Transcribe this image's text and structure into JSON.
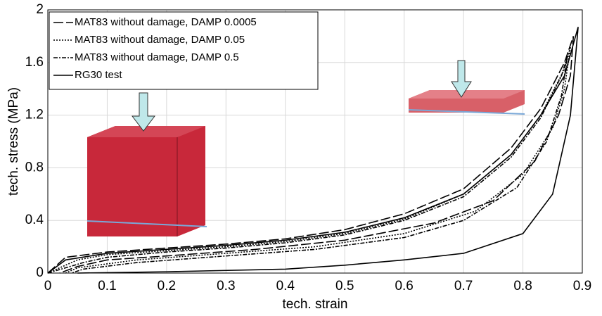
{
  "chart_data": {
    "type": "line",
    "xlabel": "tech. strain",
    "ylabel": "tech. stress (MPa)",
    "xlim": [
      0,
      0.9
    ],
    "ylim": [
      0,
      2
    ],
    "xticks": [
      0,
      0.1,
      0.2,
      0.3,
      0.4,
      0.5,
      0.6,
      0.7,
      0.8,
      0.9
    ],
    "yticks": [
      0,
      0.4,
      0.8,
      1.2,
      1.6,
      2
    ],
    "grid": true,
    "legend": "upper left",
    "series": [
      {
        "name": "MAT83 without damage, DAMP 0.0005",
        "color": "#000000",
        "dash": "14 4",
        "x": [
          0,
          0.03,
          0.1,
          0.2,
          0.3,
          0.4,
          0.5,
          0.6,
          0.7,
          0.78,
          0.83,
          0.87,
          0.885,
          0.88,
          0.86,
          0.82,
          0.75,
          0.65,
          0.5,
          0.35,
          0.2,
          0.1,
          0.05,
          0.02
        ],
        "values": [
          0,
          0.12,
          0.16,
          0.19,
          0.22,
          0.26,
          0.33,
          0.45,
          0.64,
          0.95,
          1.25,
          1.6,
          1.8,
          1.5,
          1.2,
          0.85,
          0.55,
          0.38,
          0.25,
          0.18,
          0.13,
          0.1,
          0.05,
          0
        ]
      },
      {
        "name": "MAT83 without damage, DAMP 0.05",
        "color": "#000000",
        "dash": "2 2",
        "x": [
          0,
          0.05,
          0.1,
          0.2,
          0.3,
          0.4,
          0.5,
          0.6,
          0.7,
          0.78,
          0.83,
          0.87,
          0.88,
          0.87,
          0.85,
          0.8,
          0.72,
          0.6,
          0.45,
          0.3,
          0.15,
          0.05,
          0.03
        ],
        "values": [
          0,
          0.1,
          0.14,
          0.17,
          0.2,
          0.24,
          0.3,
          0.41,
          0.6,
          0.9,
          1.2,
          1.55,
          1.72,
          1.4,
          1.1,
          0.75,
          0.47,
          0.3,
          0.2,
          0.15,
          0.1,
          0.04,
          0
        ]
      },
      {
        "name": "MAT83 without damage, DAMP 0.5",
        "color": "#000000",
        "dash": "6 2 2 2",
        "x": [
          0,
          0.06,
          0.1,
          0.2,
          0.3,
          0.4,
          0.5,
          0.6,
          0.7,
          0.78,
          0.83,
          0.865,
          0.875,
          0.865,
          0.84,
          0.79,
          0.7,
          0.6,
          0.45,
          0.3,
          0.15,
          0.06,
          0.04
        ],
        "values": [
          0,
          0.08,
          0.12,
          0.16,
          0.19,
          0.23,
          0.29,
          0.4,
          0.58,
          0.88,
          1.18,
          1.5,
          1.65,
          1.35,
          1.0,
          0.65,
          0.4,
          0.27,
          0.18,
          0.13,
          0.08,
          0.03,
          0
        ]
      },
      {
        "name": "RG30 test",
        "color": "#000000",
        "dash": "none",
        "x": [
          0,
          0.03,
          0.1,
          0.2,
          0.3,
          0.4,
          0.5,
          0.6,
          0.7,
          0.78,
          0.83,
          0.87,
          0.893,
          0.88,
          0.85,
          0.8,
          0.7,
          0.6,
          0.5,
          0.4,
          0.2,
          0.05
        ],
        "values": [
          0,
          0.1,
          0.15,
          0.18,
          0.21,
          0.25,
          0.31,
          0.42,
          0.6,
          0.9,
          1.2,
          1.5,
          1.87,
          1.2,
          0.6,
          0.3,
          0.15,
          0.1,
          0.06,
          0.03,
          0.01,
          0
        ]
      }
    ]
  }
}
